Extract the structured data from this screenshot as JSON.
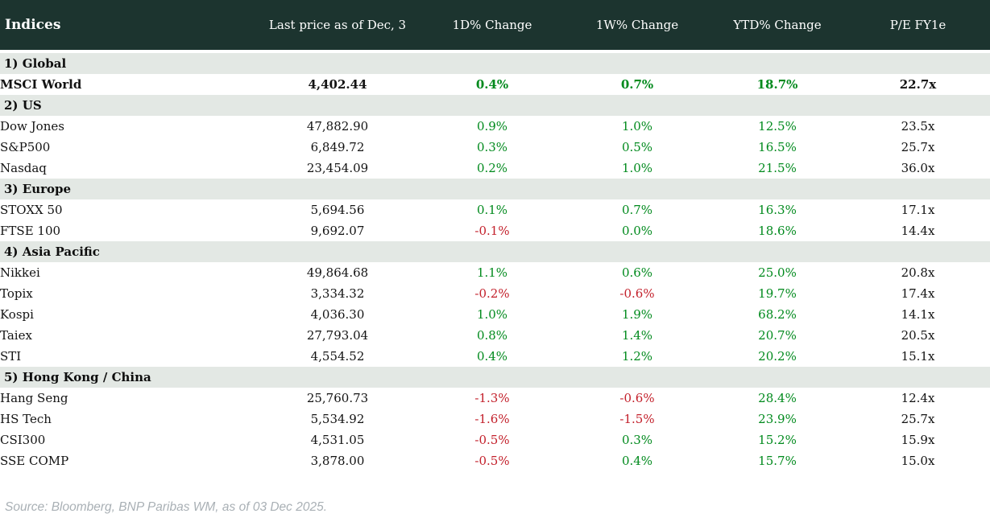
{
  "header": {
    "title": "Indices",
    "columns": [
      "Last price as of Dec, 3",
      "1D% Change",
      "1W% Change",
      "YTD% Change",
      "P/E FY1e"
    ]
  },
  "sections": [
    {
      "label": "1) Global",
      "rows": [
        {
          "name": "MSCI World",
          "price": "4,402.44",
          "d1": "0.4%",
          "w1": "0.7%",
          "ytd": "18.7%",
          "pe": "22.7x",
          "bold": true
        }
      ]
    },
    {
      "label": "2) US",
      "rows": [
        {
          "name": "Dow Jones",
          "price": "47,882.90",
          "d1": "0.9%",
          "w1": "1.0%",
          "ytd": "12.5%",
          "pe": "23.5x",
          "bold": false
        },
        {
          "name": "S&P500",
          "price": "6,849.72",
          "d1": "0.3%",
          "w1": "0.5%",
          "ytd": "16.5%",
          "pe": "25.7x",
          "bold": false
        },
        {
          "name": "Nasdaq",
          "price": "23,454.09",
          "d1": "0.2%",
          "w1": "1.0%",
          "ytd": "21.5%",
          "pe": "36.0x",
          "bold": false
        }
      ]
    },
    {
      "label": "3) Europe",
      "rows": [
        {
          "name": "STOXX 50",
          "price": "5,694.56",
          "d1": "0.1%",
          "w1": "0.7%",
          "ytd": "16.3%",
          "pe": "17.1x",
          "bold": false
        },
        {
          "name": "FTSE 100",
          "price": "9,692.07",
          "d1": "-0.1%",
          "w1": "0.0%",
          "ytd": "18.6%",
          "pe": "14.4x",
          "bold": false
        }
      ]
    },
    {
      "label": "4) Asia Pacific",
      "rows": [
        {
          "name": "Nikkei",
          "price": "49,864.68",
          "d1": "1.1%",
          "w1": "0.6%",
          "ytd": "25.0%",
          "pe": "20.8x",
          "bold": false
        },
        {
          "name": "Topix",
          "price": "3,334.32",
          "d1": "-0.2%",
          "w1": "-0.6%",
          "ytd": "19.7%",
          "pe": "17.4x",
          "bold": false
        },
        {
          "name": "Kospi",
          "price": "4,036.30",
          "d1": "1.0%",
          "w1": "1.9%",
          "ytd": "68.2%",
          "pe": "14.1x",
          "bold": false
        },
        {
          "name": "Taiex",
          "price": "27,793.04",
          "d1": "0.8%",
          "w1": "1.4%",
          "ytd": "20.7%",
          "pe": "20.5x",
          "bold": false
        },
        {
          "name": "STI",
          "price": "4,554.52",
          "d1": "0.4%",
          "w1": "1.2%",
          "ytd": "20.2%",
          "pe": "15.1x",
          "bold": false
        }
      ]
    },
    {
      "label": "5) Hong Kong / China",
      "rows": [
        {
          "name": "Hang Seng",
          "price": "25,760.73",
          "d1": "-1.3%",
          "w1": "-0.6%",
          "ytd": "28.4%",
          "pe": "12.4x",
          "bold": false
        },
        {
          "name": "HS Tech",
          "price": "5,534.92",
          "d1": "-1.6%",
          "w1": "-1.5%",
          "ytd": "23.9%",
          "pe": "25.7x",
          "bold": false
        },
        {
          "name": "CSI300",
          "price": "4,531.05",
          "d1": "-0.5%",
          "w1": "0.3%",
          "ytd": "15.2%",
          "pe": "15.9x",
          "bold": false
        },
        {
          "name": "SSE COMP",
          "price": "3,878.00",
          "d1": "-0.5%",
          "w1": "0.4%",
          "ytd": "15.7%",
          "pe": "15.0x",
          "bold": false
        }
      ]
    }
  ],
  "footer": {
    "source": "Source: Bloomberg, BNP Paribas WM, as of 03 Dec 2025."
  },
  "colors": {
    "header_bg": "#1c342f",
    "section_bg": "#e3e8e4",
    "positive": "#018a1d",
    "negative": "#c3202b",
    "muted": "#a9b0b5"
  }
}
